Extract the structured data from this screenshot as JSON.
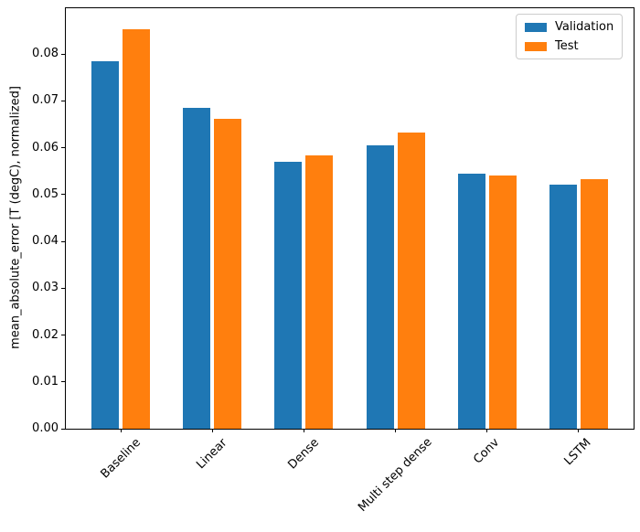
{
  "chart_data": {
    "type": "bar",
    "title": "",
    "categories": [
      "Baseline",
      "Linear",
      "Dense",
      "Multi step dense",
      "Conv",
      "LSTM"
    ],
    "series": [
      {
        "name": "Validation",
        "color": "#1f77b4",
        "values": [
          0.0785,
          0.0686,
          0.0571,
          0.0605,
          0.0544,
          0.0521
        ]
      },
      {
        "name": "Test",
        "color": "#ff7f0e",
        "values": [
          0.0854,
          0.0662,
          0.0583,
          0.0633,
          0.0541,
          0.0532
        ]
      }
    ],
    "xlabel": "",
    "ylabel": "mean_absolute_error [T (degC), normalized]",
    "ylim": [
      0,
      0.0898
    ],
    "xlim": [
      -0.6,
      5.6
    ],
    "ytick_values": [
      0,
      0.01,
      0.02,
      0.03,
      0.04,
      0.05,
      0.06,
      0.07,
      0.08
    ],
    "ytick_labels": [
      "0.00",
      "0.01",
      "0.02",
      "0.03",
      "0.04",
      "0.05",
      "0.06",
      "0.07",
      "0.08"
    ],
    "bar_width_fraction": 0.3,
    "bar_offset_fraction": 0.17,
    "grid": false,
    "legend_position": "upper right",
    "xtick_rotation_deg": 45
  }
}
